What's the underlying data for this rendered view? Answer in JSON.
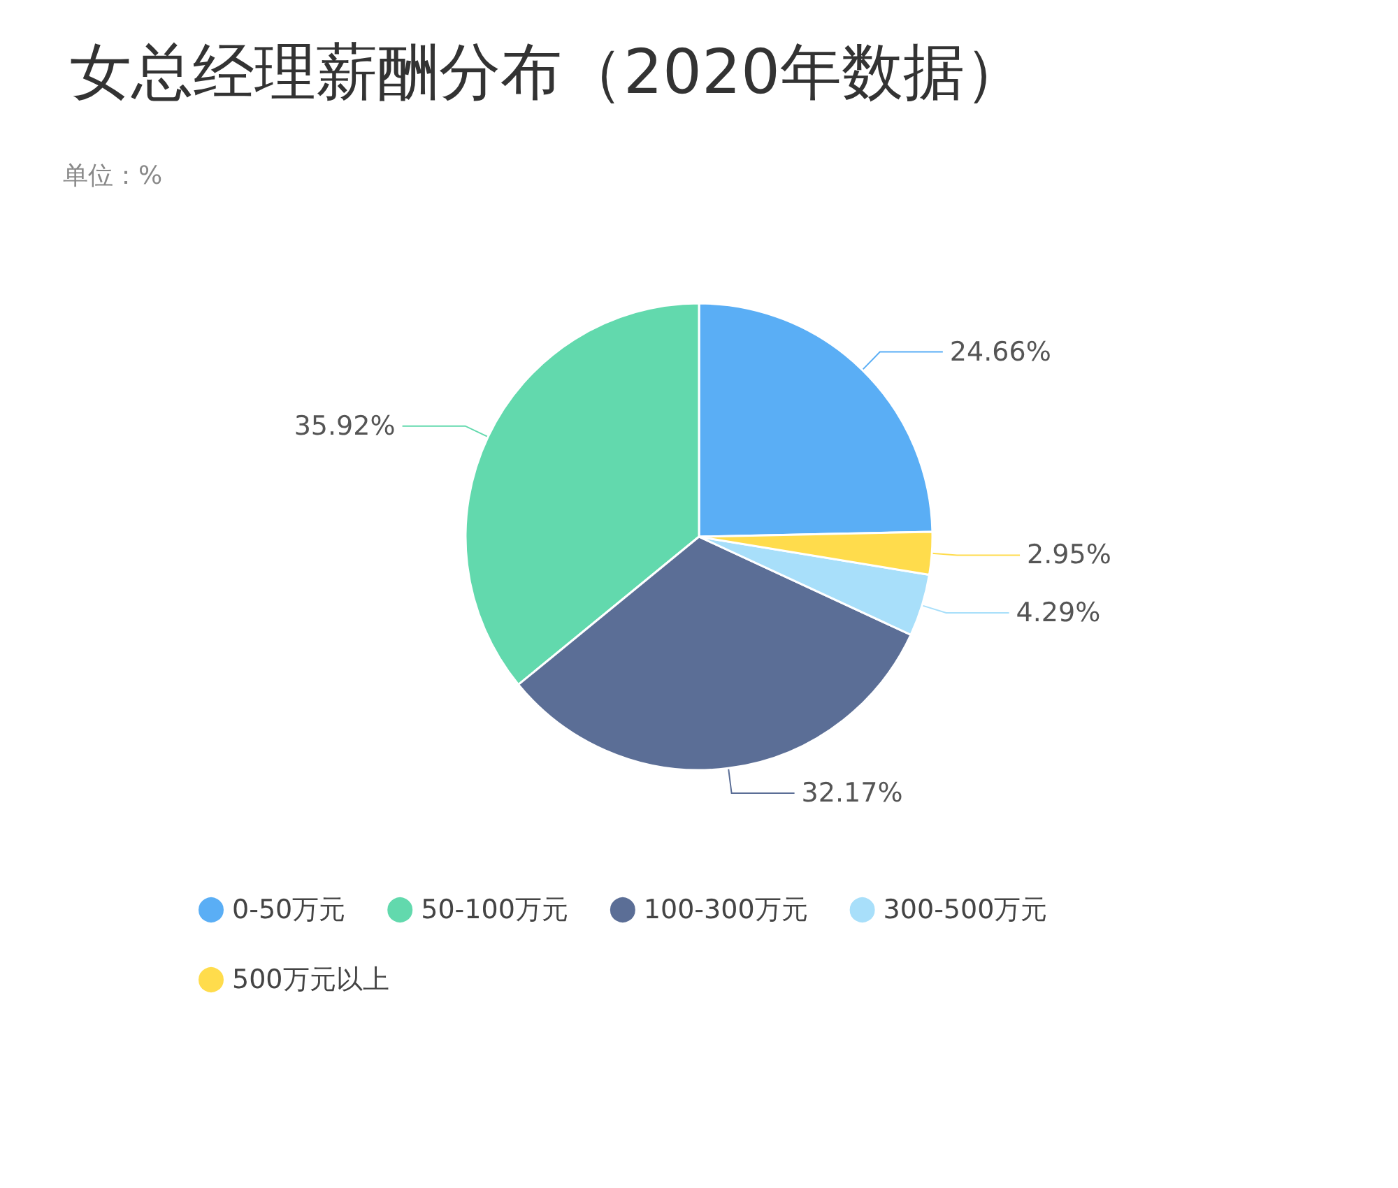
{
  "chart_data": {
    "type": "pie",
    "title": "女总经理薪酬分布（2020年数据）",
    "subtitle": "单位：%",
    "categories": [
      "0-50万元",
      "50-100万元",
      "100-300万元",
      "300-500万元",
      "500万元以上"
    ],
    "values": [
      24.66,
      35.92,
      32.17,
      4.29,
      2.95
    ],
    "value_labels": [
      "24.66%",
      "35.92%",
      "32.17%",
      "4.29%",
      "2.95%"
    ],
    "colors": [
      "#5aaef5",
      "#62d9ad",
      "#5b6e96",
      "#a8dffa",
      "#ffdc4c"
    ],
    "legend": "bottom"
  }
}
